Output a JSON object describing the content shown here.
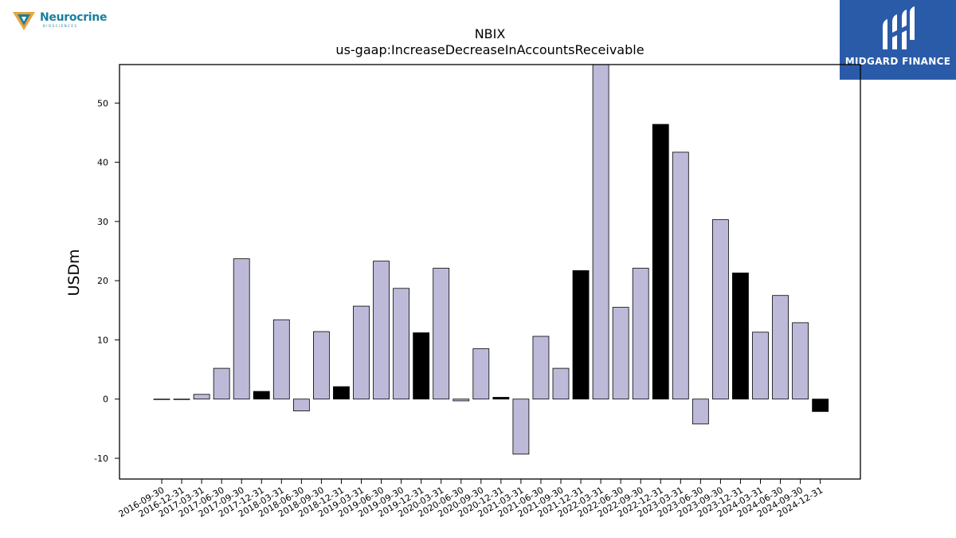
{
  "header": {
    "logo_left_text": "Neurocrine",
    "logo_left_sub": "BIOSCIENCES",
    "logo_right_text": "MIDGARD FINANCE"
  },
  "colors": {
    "bar_default": "#bdbad9",
    "bar_highlight": "#000000",
    "brand_right": "#2a5ba8",
    "brand_left": "#1a7fa0"
  },
  "chart_data": {
    "type": "bar",
    "title": "NBIX",
    "subtitle": "us-gaap:IncreaseDecreaseInAccountsReceivable",
    "xlabel": "",
    "ylabel": "USDm",
    "ylim": [
      -13.5,
      56.5
    ],
    "yticks": [
      -10,
      0,
      10,
      20,
      30,
      40,
      50
    ],
    "grid": false,
    "categories": [
      "2016-09-30",
      "2016-12-31",
      "2017-03-31",
      "2017-06-30",
      "2017-09-30",
      "2017-12-31",
      "2018-03-31",
      "2018-06-30",
      "2018-09-30",
      "2018-12-31",
      "2019-03-31",
      "2019-06-30",
      "2019-09-30",
      "2019-12-31",
      "2020-03-31",
      "2020-06-30",
      "2020-09-30",
      "2020-12-31",
      "2021-03-31",
      "2021-06-30",
      "2021-09-30",
      "2021-12-31",
      "2022-03-31",
      "2022-06-30",
      "2022-09-30",
      "2022-12-31",
      "2023-03-31",
      "2023-06-30",
      "2023-09-30",
      "2023-12-31",
      "2024-03-31",
      "2024-06-30",
      "2024-09-30",
      "2024-12-31"
    ],
    "values": [
      0,
      0,
      0.8,
      5.2,
      23.7,
      1.3,
      13.4,
      -2.0,
      11.4,
      2.1,
      15.7,
      23.3,
      18.7,
      11.2,
      22.1,
      -0.3,
      8.5,
      0.3,
      -9.3,
      10.6,
      5.2,
      21.7,
      57.5,
      15.5,
      22.1,
      46.4,
      41.7,
      -4.2,
      30.3,
      21.3,
      11.3,
      17.5,
      12.9,
      -2.1
    ],
    "highlight": [
      false,
      false,
      false,
      false,
      false,
      true,
      false,
      false,
      false,
      true,
      false,
      false,
      false,
      true,
      false,
      false,
      false,
      true,
      false,
      false,
      false,
      true,
      false,
      false,
      false,
      true,
      false,
      false,
      false,
      true,
      false,
      false,
      false,
      true
    ]
  }
}
